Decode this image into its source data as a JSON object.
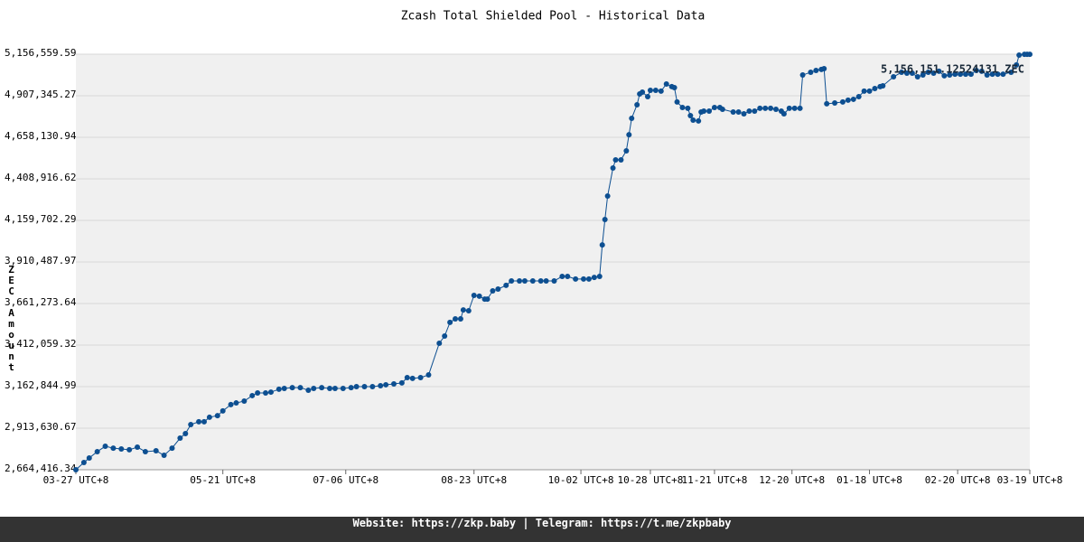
{
  "chart_data": {
    "type": "line",
    "title": "Zcash Total Shielded Pool - Historical Data",
    "y_label": "ZEC Amount",
    "annotation": "5,156,151.12524131 ZEC",
    "footer": "Website: https://zkp.baby | Telegram: https://t.me/zkpbaby",
    "color": "#0d4f91",
    "grid": true,
    "x": [
      "03-27",
      "03-30",
      "04-01",
      "04-04",
      "04-07",
      "04-10",
      "04-13",
      "04-16",
      "04-19",
      "04-22",
      "04-26",
      "04-29",
      "05-02",
      "05-05",
      "05-07",
      "05-09",
      "05-12",
      "05-14",
      "05-16",
      "05-19",
      "05-21",
      "05-24",
      "05-26",
      "05-29",
      "06-01",
      "06-03",
      "06-06",
      "06-08",
      "06-11",
      "06-13",
      "06-16",
      "06-19",
      "06-22",
      "06-24",
      "06-27",
      "06-30",
      "07-02",
      "07-05",
      "07-08",
      "07-10",
      "07-13",
      "07-16",
      "07-19",
      "07-21",
      "07-24",
      "07-27",
      "07-29",
      "07-31",
      "08-03",
      "08-06",
      "08-10",
      "08-12",
      "08-14",
      "08-16",
      "08-18",
      "08-19",
      "08-21",
      "08-23",
      "08-25",
      "08-27",
      "08-28",
      "08-30",
      "09-01",
      "09-04",
      "09-06",
      "09-09",
      "09-11",
      "09-14",
      "09-17",
      "09-19",
      "09-22",
      "09-25",
      "09-27",
      "09-30",
      "10-03",
      "10-05",
      "10-07",
      "10-09",
      "10-10",
      "10-11",
      "10-12",
      "10-14",
      "10-15",
      "10-17",
      "10-19",
      "10-20",
      "10-21",
      "10-23",
      "10-24",
      "10-25",
      "10-27",
      "10-28",
      "10-30",
      "11-01",
      "11-03",
      "11-05",
      "11-06",
      "11-07",
      "11-09",
      "11-11",
      "11-12",
      "11-13",
      "11-15",
      "11-16",
      "11-17",
      "11-19",
      "11-21",
      "11-23",
      "11-24",
      "11-28",
      "11-30",
      "12-02",
      "12-04",
      "12-06",
      "12-08",
      "12-10",
      "12-12",
      "12-14",
      "12-16",
      "12-17",
      "12-19",
      "12-21",
      "12-23",
      "12-24",
      "12-27",
      "12-29",
      "12-31",
      "01-01",
      "01-02",
      "01-05",
      "01-08",
      "01-10",
      "01-12",
      "01-14",
      "01-16",
      "01-18",
      "01-20",
      "01-22",
      "01-23",
      "01-27",
      "01-30",
      "02-01",
      "02-03",
      "02-05",
      "02-07",
      "02-09",
      "02-11",
      "02-13",
      "02-15",
      "02-17",
      "02-19",
      "02-21",
      "02-23",
      "02-25",
      "02-27",
      "03-01",
      "03-03",
      "03-05",
      "03-07",
      "03-09",
      "03-12",
      "03-14",
      "03-15",
      "03-17",
      "03-18",
      "03-19"
    ],
    "values": [
      2664416,
      2708000,
      2735000,
      2773000,
      2805000,
      2794000,
      2789000,
      2784000,
      2800000,
      2773000,
      2778000,
      2751000,
      2794000,
      2854000,
      2881000,
      2935000,
      2952000,
      2952000,
      2979000,
      2989000,
      3017000,
      3055000,
      3065000,
      3076000,
      3109000,
      3125000,
      3125000,
      3130000,
      3147000,
      3152000,
      3157000,
      3157000,
      3141000,
      3152000,
      3157000,
      3152000,
      3152000,
      3152000,
      3157000,
      3163000,
      3163000,
      3163000,
      3168000,
      3174000,
      3179000,
      3185000,
      3217000,
      3212000,
      3217000,
      3233000,
      3423000,
      3466000,
      3548000,
      3569000,
      3569000,
      3623000,
      3618000,
      3710000,
      3705000,
      3688000,
      3688000,
      3737000,
      3748000,
      3770000,
      3797000,
      3797000,
      3797000,
      3797000,
      3797000,
      3797000,
      3797000,
      3824000,
      3824000,
      3808000,
      3808000,
      3808000,
      3818000,
      3824000,
      4013000,
      4165000,
      4306000,
      4474000,
      4523000,
      4523000,
      4577000,
      4674000,
      4772000,
      4853000,
      4918000,
      4929000,
      4902000,
      4940000,
      4940000,
      4935000,
      4978000,
      4962000,
      4956000,
      4870000,
      4837000,
      4832000,
      4788000,
      4761000,
      4756000,
      4810000,
      4815000,
      4815000,
      4837000,
      4837000,
      4826000,
      4810000,
      4810000,
      4799000,
      4815000,
      4815000,
      4832000,
      4832000,
      4832000,
      4826000,
      4815000,
      4799000,
      4832000,
      4832000,
      4832000,
      5032000,
      5048000,
      5059000,
      5065000,
      5070000,
      4859000,
      4864000,
      4870000,
      4881000,
      4886000,
      4902000,
      4935000,
      4935000,
      4951000,
      4962000,
      4967000,
      5021000,
      5048000,
      5043000,
      5043000,
      5021000,
      5032000,
      5048000,
      5043000,
      5054000,
      5027000,
      5032000,
      5037000,
      5037000,
      5037000,
      5037000,
      5059000,
      5054000,
      5032000,
      5037000,
      5037000,
      5037000,
      5048000,
      5092000,
      5151000,
      5156000,
      5156151,
      5156151.13
    ],
    "xlim": [
      "03-27",
      "03-19"
    ],
    "xticks": [
      {
        "value": "03-27",
        "label": "03-27 UTC+8"
      },
      {
        "value": "05-21",
        "label": "05-21 UTC+8"
      },
      {
        "value": "07-06",
        "label": "07-06 UTC+8"
      },
      {
        "value": "08-23",
        "label": "08-23 UTC+8"
      },
      {
        "value": "10-02",
        "label": "10-02 UTC+8"
      },
      {
        "value": "10-28",
        "label": "10-28 UTC+8"
      },
      {
        "value": "11-21",
        "label": "11-21 UTC+8"
      },
      {
        "value": "12-20",
        "label": "12-20 UTC+8"
      },
      {
        "value": "01-18",
        "label": "01-18 UTC+8"
      },
      {
        "value": "02-20",
        "label": "02-20 UTC+8"
      },
      {
        "value": "03-19",
        "label": "03-19 UTC+8"
      }
    ],
    "ylim": [
      2664416.34,
      5156559.59
    ],
    "yticks": [
      {
        "value": 2664416.34,
        "label": "2,664,416.34"
      },
      {
        "value": 2913630.67,
        "label": "2,913,630.67"
      },
      {
        "value": 3162844.99,
        "label": "3,162,844.99"
      },
      {
        "value": 3412059.32,
        "label": "3,412,059.32"
      },
      {
        "value": 3661273.64,
        "label": "3,661,273.64"
      },
      {
        "value": 3910487.97,
        "label": "3,910,487.97"
      },
      {
        "value": 4159702.29,
        "label": "4,159,702.29"
      },
      {
        "value": 4408916.62,
        "label": "4,408,916.62"
      },
      {
        "value": 4658130.94,
        "label": "4,658,130.94"
      },
      {
        "value": 4907345.27,
        "label": "4,907,345.27"
      },
      {
        "value": 5156559.59,
        "label": "5,156,559.59"
      }
    ]
  }
}
